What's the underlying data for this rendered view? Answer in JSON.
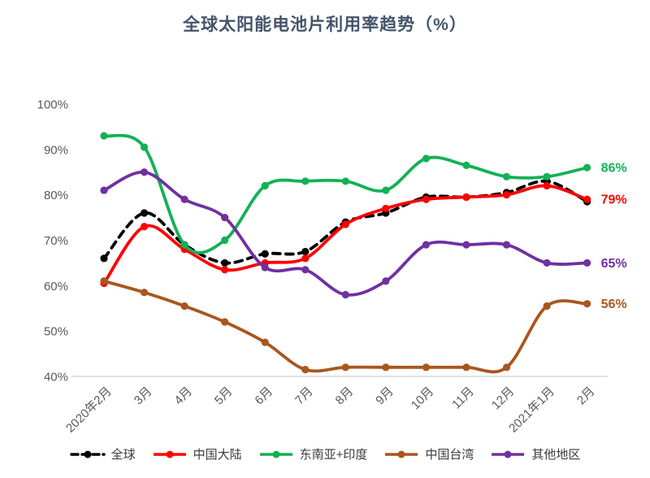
{
  "title": "全球太阳能电池片利用率趋势（%）",
  "colors": {
    "title": "#44546A",
    "axis_text": "#595959",
    "axis_line": "#D9D9D9",
    "global": "#000000",
    "china_mainland": "#FF0000",
    "sea_india": "#12B155",
    "taiwan": "#A9561E",
    "others": "#7030A0"
  },
  "chart_data": {
    "type": "line",
    "title": "全球太阳能电池片利用率趋势（%）",
    "xlabel": "",
    "ylabel": "",
    "grid": false,
    "legend_position": "bottom",
    "categories": [
      "2020年2月",
      "3月",
      "4月",
      "5月",
      "6月",
      "7月",
      "8月",
      "9月",
      "10月",
      "11月",
      "12月",
      "2021年1月",
      "2月"
    ],
    "y_axis": {
      "min": 40,
      "max": 100,
      "step": 10,
      "tick_labels": [
        "40%",
        "50%",
        "60%",
        "70%",
        "80%",
        "90%",
        "100%"
      ]
    },
    "series": [
      {
        "key": "global",
        "name": "全球",
        "color": "#000000",
        "dashed": true,
        "end_label": "",
        "values": [
          66,
          76,
          69,
          65,
          67,
          67.5,
          74,
          76,
          79.5,
          79.5,
          80.5,
          83,
          78.5
        ]
      },
      {
        "key": "china-mainland",
        "name": "中国大陆",
        "color": "#FF0000",
        "dashed": false,
        "end_label": "79%",
        "values": [
          60.5,
          73,
          68,
          63.5,
          65,
          66,
          73.5,
          77,
          79,
          79.5,
          80,
          82,
          79
        ]
      },
      {
        "key": "sea-india",
        "name": "东南亚+印度",
        "color": "#12B155",
        "dashed": false,
        "end_label": "86%",
        "values": [
          93,
          90.5,
          69,
          70,
          82,
          83,
          83,
          81,
          88,
          86.5,
          84,
          84,
          86
        ]
      },
      {
        "key": "taiwan",
        "name": "中国台湾",
        "color": "#A9561E",
        "dashed": false,
        "end_label": "56%",
        "values": [
          61,
          58.5,
          55.5,
          52,
          47.5,
          41.5,
          42,
          42,
          42,
          42,
          42,
          55.5,
          56
        ]
      },
      {
        "key": "others",
        "name": "其他地区",
        "color": "#7030A0",
        "dashed": false,
        "end_label": "65%",
        "values": [
          81,
          85,
          79,
          75,
          64,
          63.5,
          58,
          61,
          69,
          69,
          69,
          65,
          65
        ]
      }
    ]
  }
}
